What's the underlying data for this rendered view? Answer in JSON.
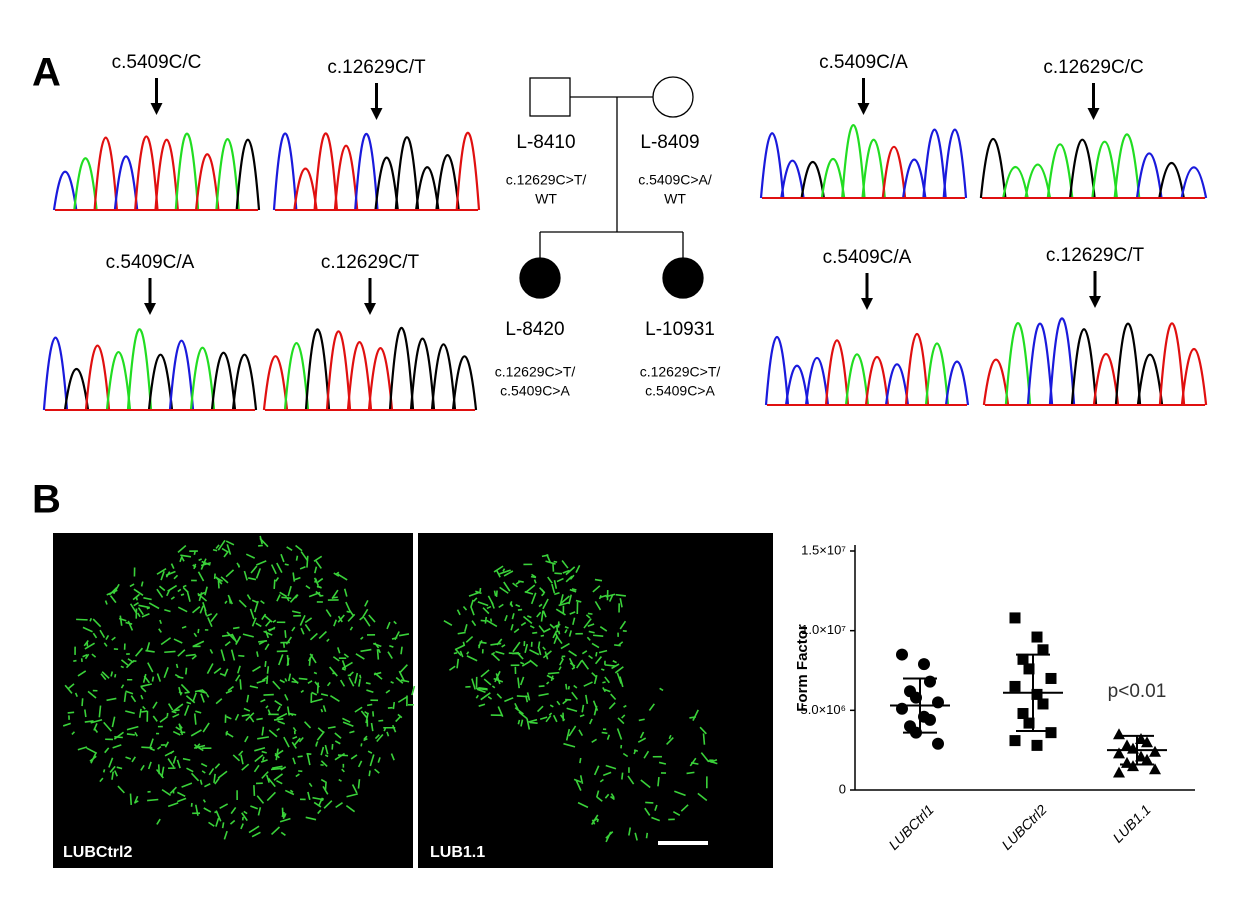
{
  "panel_a": {
    "label": "A",
    "traces": [
      {
        "label": "c.5409C/C"
      },
      {
        "label": "c.12629C/T"
      },
      {
        "label": "c.5409C/A"
      },
      {
        "label": "c.12629C/T"
      },
      {
        "label": "c.5409C/A"
      },
      {
        "label": "c.12629C/C"
      },
      {
        "label": "c.5409C/A"
      },
      {
        "label": "c.12629C/T"
      }
    ],
    "pedigree": [
      {
        "id": "L-8410",
        "genotype": [
          "c.12629C>T/",
          "WT"
        ]
      },
      {
        "id": "L-8409",
        "genotype": [
          "c.5409C>A/",
          "WT"
        ]
      },
      {
        "id": "L-8420",
        "genotype": [
          "c.12629C>T/",
          "c.5409C>A"
        ]
      },
      {
        "id": "L-10931",
        "genotype": [
          "c.12629C>T/",
          "c.5409C>A"
        ]
      }
    ]
  },
  "panel_b": {
    "label": "B",
    "images": [
      "LUBCtrl2",
      "LUB1.1"
    ]
  },
  "chart_data": {
    "type": "scatter",
    "ylabel": "Form Factor",
    "annotation": "p<0.01",
    "categories": [
      "LUBCtrl1",
      "LUBCtrl2",
      "LUB1.1"
    ],
    "markers": [
      "circle",
      "square",
      "triangle"
    ],
    "color": "#000000",
    "points": [
      [
        8500000,
        7900000,
        6800000,
        6200000,
        5800000,
        5500000,
        5100000,
        4600000,
        4400000,
        4000000,
        3600000,
        2900000
      ],
      [
        10800000,
        9600000,
        8800000,
        8200000,
        7600000,
        7000000,
        6500000,
        6000000,
        5400000,
        4800000,
        4200000,
        3600000,
        3100000,
        2800000
      ],
      [
        3500000,
        3200000,
        3000000,
        2800000,
        2600000,
        2400000,
        2300000,
        2100000,
        1900000,
        1700000,
        1500000,
        1300000,
        1100000
      ]
    ],
    "means": [
      5300000,
      6100000,
      2500000
    ],
    "sd": [
      1700000,
      2400000,
      900000
    ],
    "ylim": [
      0,
      15000000
    ],
    "yticks": [
      0,
      {
        "value": 5000000,
        "label": "5.0×10⁶"
      },
      {
        "value": 10000000,
        "label": "1.0×10⁷"
      },
      {
        "value": 15000000,
        "label": "1.5×10⁷"
      }
    ]
  }
}
